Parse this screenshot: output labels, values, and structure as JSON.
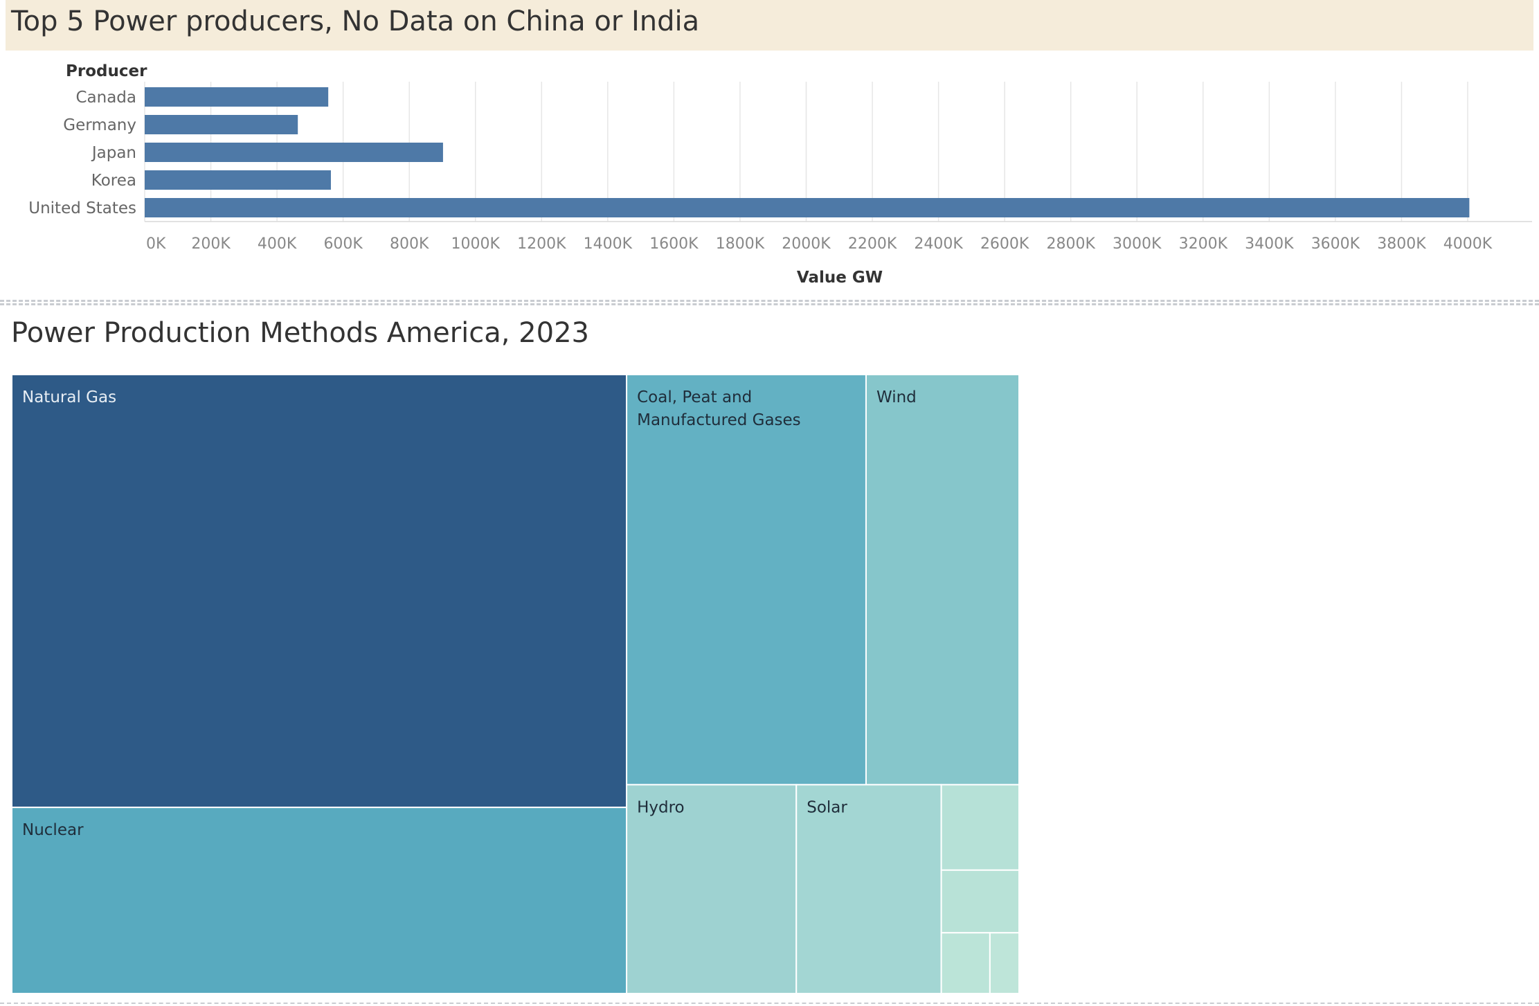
{
  "bar_chart": {
    "title": "Top 5 Power producers, No Data on China or India",
    "row_header": "Producer",
    "xlabel": "Value GW"
  },
  "treemap": {
    "title": "Power Production Methods America, 2023"
  },
  "chart_data": [
    {
      "type": "bar",
      "orientation": "horizontal",
      "title": "Top 5 Power producers, No Data on China or India",
      "ylabel": "Producer",
      "xlabel": "Value GW",
      "categories": [
        "Canada",
        "Germany",
        "Japan",
        "Korea",
        "United States"
      ],
      "values": [
        555000,
        463000,
        902000,
        563000,
        4005000
      ],
      "xlim": [
        0,
        4200000
      ],
      "xticks": [
        0,
        200000,
        400000,
        600000,
        800000,
        1000000,
        1200000,
        1400000,
        1600000,
        1800000,
        2000000,
        2200000,
        2400000,
        2600000,
        2800000,
        3000000,
        3200000,
        3400000,
        3600000,
        3800000,
        4000000
      ],
      "xtick_labels": [
        "0K",
        "200K",
        "400K",
        "600K",
        "800K",
        "1000K",
        "1200K",
        "1400K",
        "1600K",
        "1800K",
        "2000K",
        "2200K",
        "2400K",
        "2600K",
        "2800K",
        "3000K",
        "3200K",
        "3400K",
        "3600K",
        "3800K",
        "4000K"
      ],
      "grid": true,
      "bar_color": "#4e79a7"
    },
    {
      "type": "treemap",
      "title": "Power Production Methods America, 2023",
      "items": [
        {
          "label": "Natural Gas",
          "value": 1802,
          "color": "#2e5a87"
        },
        {
          "label": "Nuclear",
          "value": 775,
          "color": "#58aabf"
        },
        {
          "label": "Coal, Peat and Manufactured Gases",
          "value": 665,
          "color": "#63b1c3"
        },
        {
          "label": "Wind",
          "value": 425,
          "color": "#86c6cb"
        },
        {
          "label": "Hydro",
          "value": 240,
          "color": "#9ed2d1"
        },
        {
          "label": "Solar",
          "value": 205,
          "color": "#a3d6d3"
        },
        {
          "label": "",
          "value": 45,
          "color": "#b6e1d7"
        },
        {
          "label": "",
          "value": 33,
          "color": "#b8e2d7"
        },
        {
          "label": "",
          "value": 20,
          "color": "#bbe4d8"
        },
        {
          "label": "",
          "value": 12,
          "color": "#bee5d9"
        }
      ]
    }
  ]
}
